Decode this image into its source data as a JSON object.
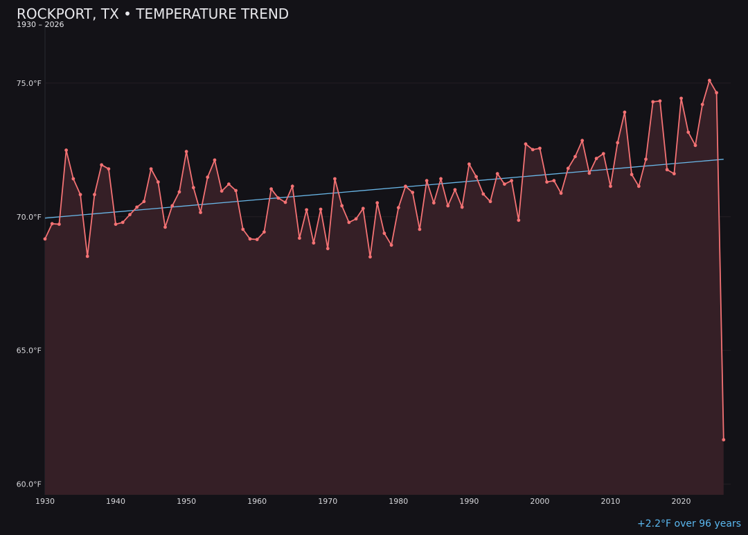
{
  "chart_data": {
    "type": "line",
    "title": "ROCKPORT, TX • TEMPERATURE TREND",
    "subtitle": "1930 – 2026",
    "annotation": "+2.2°F over 96 years",
    "x": [
      1930,
      1931,
      1932,
      1933,
      1934,
      1935,
      1936,
      1937,
      1938,
      1939,
      1940,
      1941,
      1942,
      1943,
      1944,
      1945,
      1946,
      1947,
      1948,
      1949,
      1950,
      1951,
      1952,
      1953,
      1954,
      1955,
      1956,
      1957,
      1958,
      1959,
      1960,
      1961,
      1962,
      1963,
      1964,
      1965,
      1966,
      1967,
      1968,
      1969,
      1970,
      1971,
      1972,
      1973,
      1974,
      1975,
      1976,
      1977,
      1978,
      1979,
      1980,
      1981,
      1982,
      1983,
      1984,
      1985,
      1986,
      1987,
      1988,
      1989,
      1990,
      1991,
      1992,
      1993,
      1994,
      1995,
      1996,
      1997,
      1998,
      1999,
      2000,
      2001,
      2002,
      2003,
      2004,
      2005,
      2006,
      2007,
      2008,
      2009,
      2010,
      2011,
      2012,
      2013,
      2014,
      2015,
      2016,
      2017,
      2018,
      2019,
      2020,
      2021,
      2022,
      2023,
      2024,
      2025,
      2026
    ],
    "series": [
      {
        "color": "#f47274",
        "values": [
          69.17,
          69.74,
          69.72,
          72.49,
          71.42,
          70.83,
          68.52,
          70.83,
          71.94,
          71.79,
          69.72,
          69.79,
          70.08,
          70.36,
          70.57,
          71.79,
          71.3,
          69.61,
          70.41,
          70.93,
          72.44,
          71.09,
          70.16,
          71.48,
          72.12,
          70.96,
          71.22,
          70.98,
          69.53,
          69.17,
          69.15,
          69.43,
          71.04,
          70.7,
          70.54,
          71.14,
          69.2,
          70.26,
          69.02,
          70.28,
          68.81,
          71.42,
          70.41,
          69.79,
          69.92,
          70.31,
          68.5,
          70.52,
          69.38,
          68.94,
          70.34,
          71.14,
          70.91,
          69.53,
          71.35,
          70.52,
          71.42,
          70.41,
          71.01,
          70.36,
          71.97,
          71.5,
          70.85,
          70.57,
          71.61,
          71.22,
          71.35,
          69.87,
          72.72,
          72.51,
          72.56,
          71.3,
          71.35,
          70.88,
          71.81,
          72.25,
          72.85,
          71.63,
          72.18,
          72.36,
          71.14,
          72.77,
          73.91,
          71.58,
          71.14,
          72.15,
          74.3,
          74.33,
          71.76,
          71.61,
          74.43,
          73.16,
          72.67,
          74.2,
          75.1,
          74.64,
          61.66
        ]
      }
    ],
    "area_color": "#351f26",
    "trend": {
      "x": [
        1930,
        2026
      ],
      "values": [
        69.95,
        72.15
      ],
      "color": "#6ab7e8"
    },
    "xlim": [
      1930,
      2027
    ],
    "xticks": [
      1930,
      1940,
      1950,
      1960,
      1970,
      1980,
      1990,
      2000,
      2010,
      2020
    ],
    "ylim": [
      59.6,
      77.2
    ],
    "yticks": [
      {
        "value": 60,
        "label": "60.0°F"
      },
      {
        "value": 65,
        "label": "65.0°F"
      },
      {
        "value": 70,
        "label": "70.0°F"
      },
      {
        "value": 75,
        "label": "75.0°F"
      }
    ],
    "grid": true
  }
}
